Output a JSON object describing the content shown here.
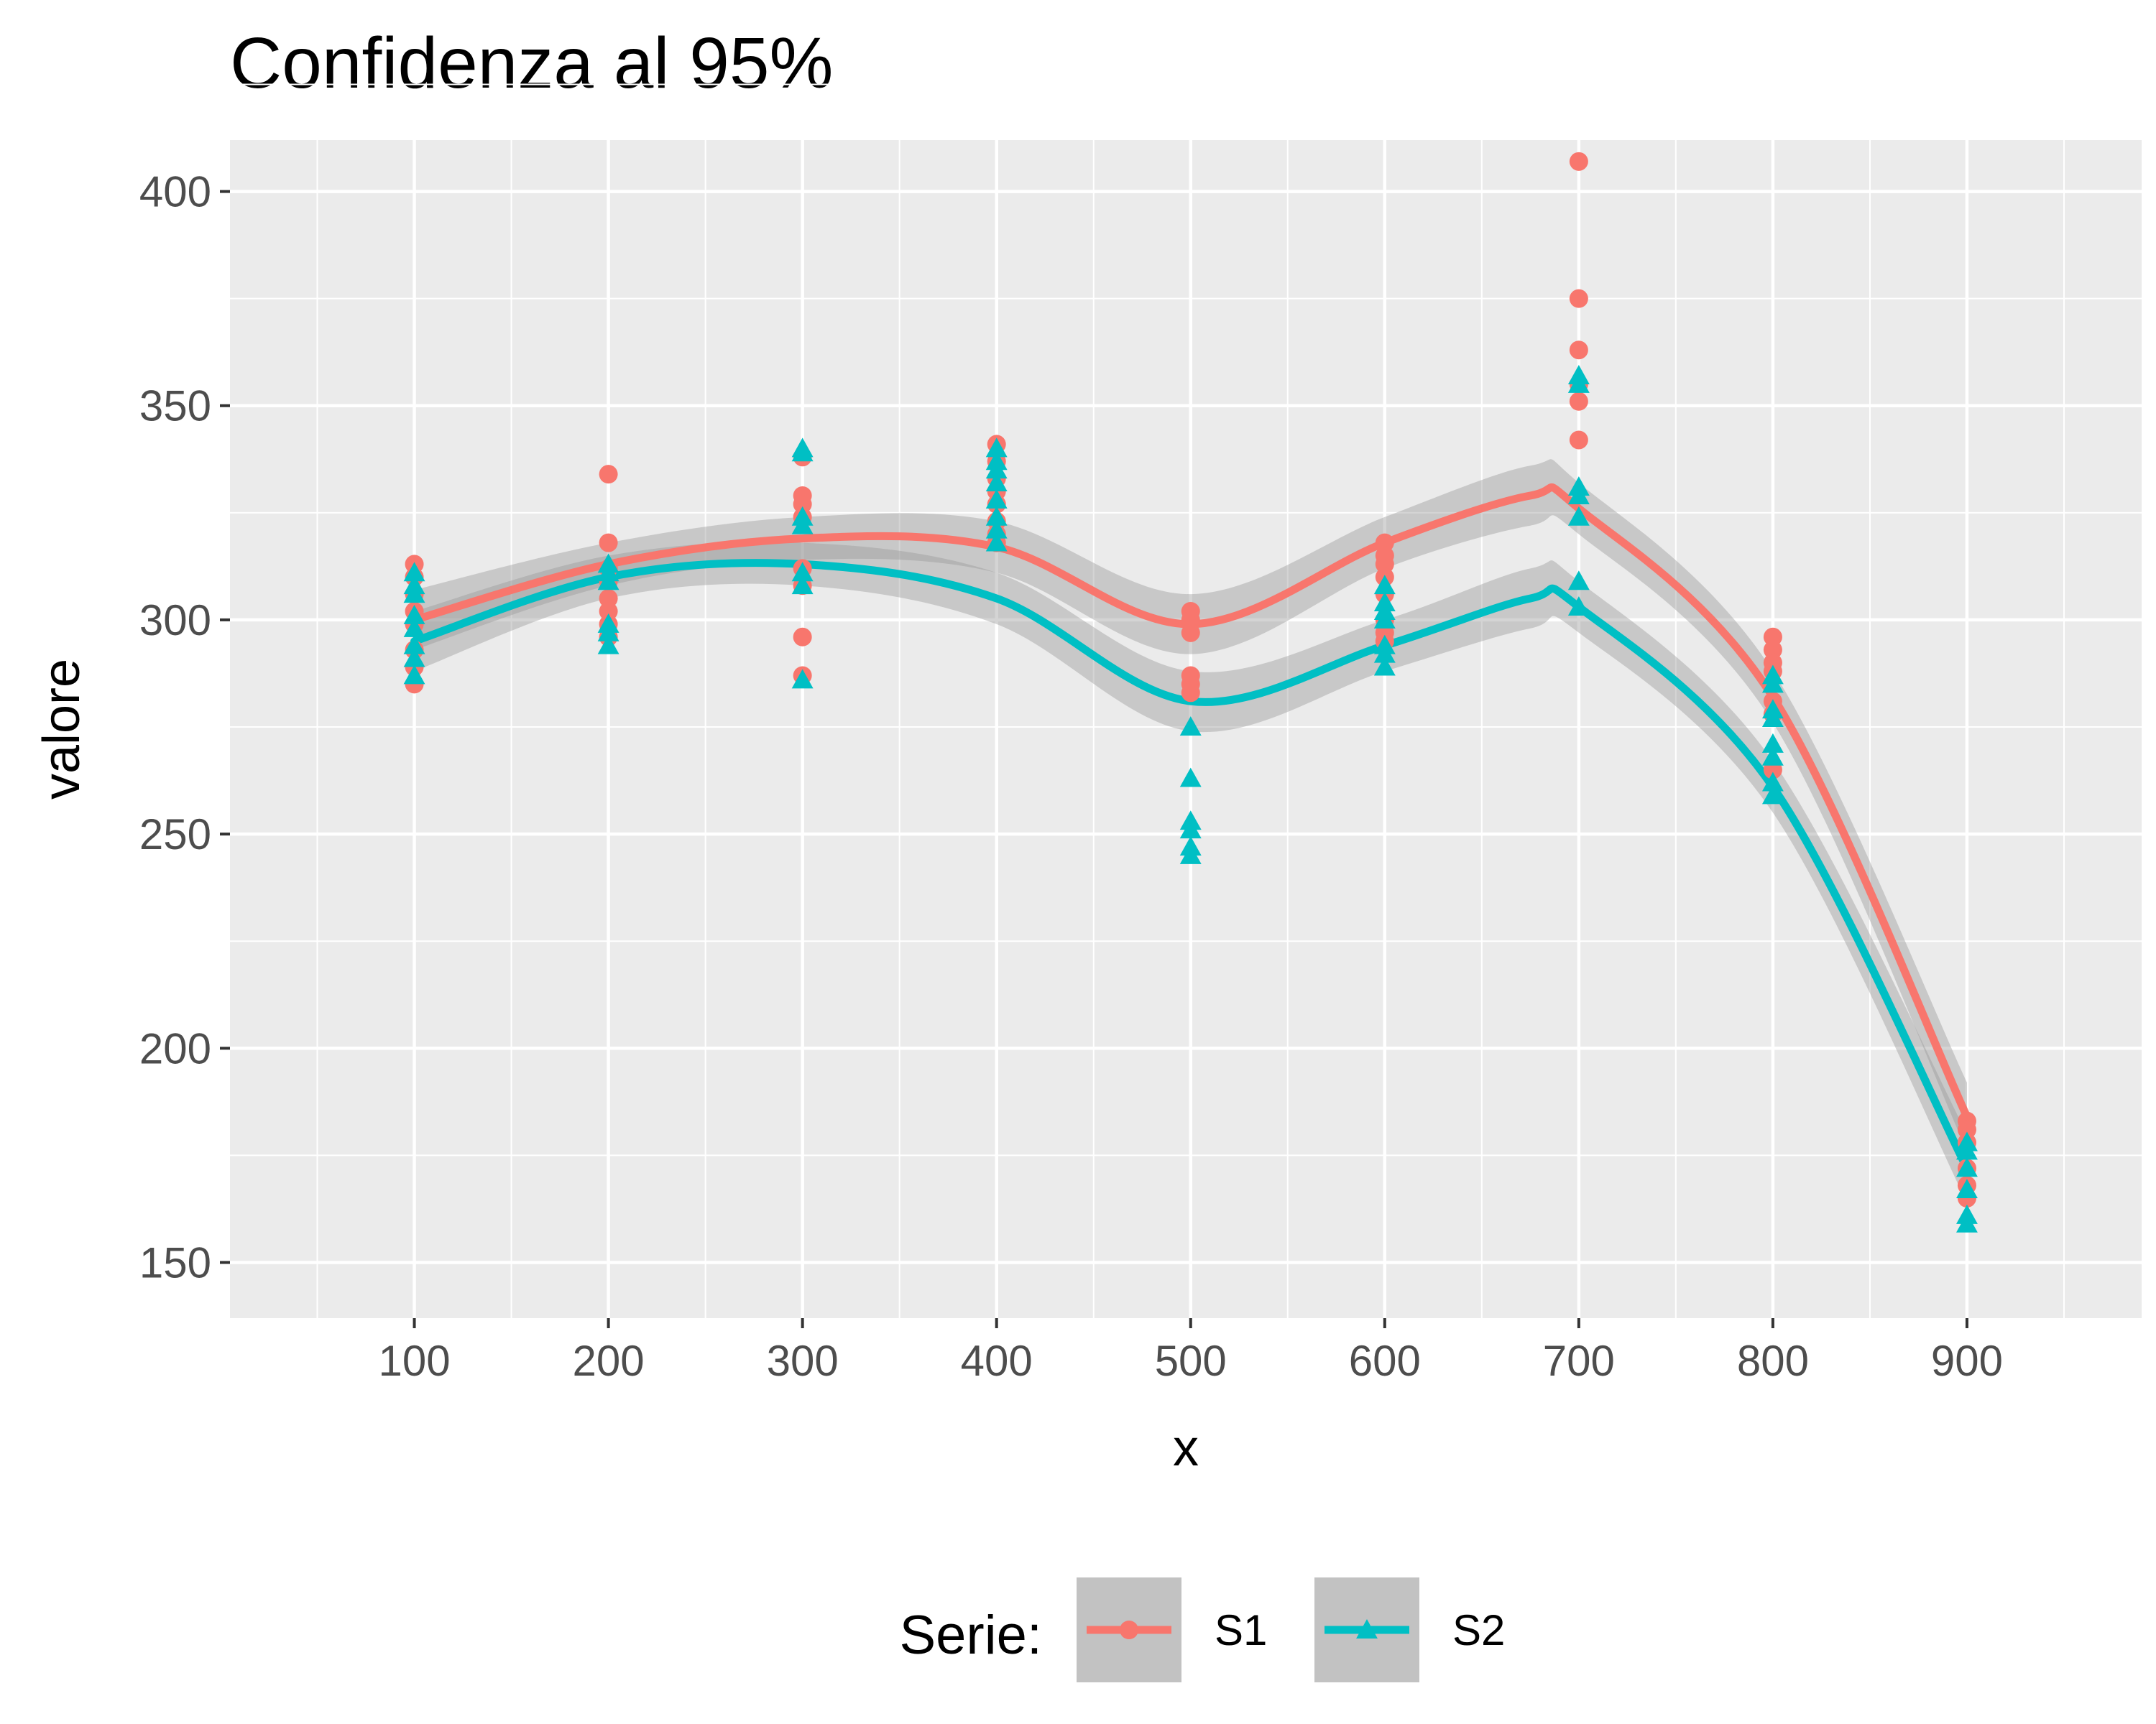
{
  "chart_data": {
    "type": "scatter",
    "title": "Confidenza al 95%",
    "xlabel": "x",
    "ylabel": "valore",
    "xlim": [
      5,
      990
    ],
    "ylim": [
      137,
      412
    ],
    "x_ticks": [
      100,
      200,
      300,
      400,
      500,
      600,
      700,
      800,
      900
    ],
    "y_ticks": [
      150,
      200,
      250,
      300,
      350,
      400
    ],
    "grid": true,
    "legend_position": "bottom",
    "legend_title": "Serie:",
    "colors": {
      "S1": "#F8766D",
      "S2": "#00BFC4",
      "ribbon": "#999999",
      "panel": "#EBEBEB"
    },
    "series": [
      {
        "name": "S1",
        "marker": "circle",
        "points": [
          [
            100,
            313
          ],
          [
            100,
            310
          ],
          [
            100,
            306
          ],
          [
            100,
            302
          ],
          [
            100,
            299
          ],
          [
            100,
            293
          ],
          [
            100,
            289
          ],
          [
            100,
            285
          ],
          [
            200,
            334
          ],
          [
            200,
            318
          ],
          [
            200,
            312
          ],
          [
            200,
            309
          ],
          [
            200,
            305
          ],
          [
            200,
            302
          ],
          [
            200,
            299
          ],
          [
            200,
            296
          ],
          [
            300,
            338
          ],
          [
            300,
            329
          ],
          [
            300,
            327
          ],
          [
            300,
            324
          ],
          [
            300,
            312
          ],
          [
            300,
            308
          ],
          [
            300,
            296
          ],
          [
            300,
            287
          ],
          [
            400,
            341
          ],
          [
            400,
            337
          ],
          [
            400,
            333
          ],
          [
            400,
            330
          ],
          [
            400,
            327
          ],
          [
            400,
            323
          ],
          [
            400,
            320
          ],
          [
            400,
            318
          ],
          [
            500,
            302
          ],
          [
            500,
            300
          ],
          [
            500,
            297
          ],
          [
            500,
            287
          ],
          [
            500,
            285
          ],
          [
            500,
            283
          ],
          [
            600,
            318
          ],
          [
            600,
            315
          ],
          [
            600,
            313
          ],
          [
            600,
            310
          ],
          [
            600,
            306
          ],
          [
            600,
            300
          ],
          [
            600,
            297
          ],
          [
            600,
            295
          ],
          [
            700,
            407
          ],
          [
            700,
            375
          ],
          [
            700,
            363
          ],
          [
            700,
            355
          ],
          [
            700,
            351
          ],
          [
            700,
            342
          ],
          [
            800,
            296
          ],
          [
            800,
            293
          ],
          [
            800,
            290
          ],
          [
            800,
            288
          ],
          [
            800,
            281
          ],
          [
            800,
            278
          ],
          [
            800,
            265
          ],
          [
            900,
            183
          ],
          [
            900,
            181
          ],
          [
            900,
            178
          ],
          [
            900,
            172
          ],
          [
            900,
            168
          ],
          [
            900,
            165
          ]
        ],
        "fit": [
          [
            100,
            300
          ],
          [
            200,
            313
          ],
          [
            300,
            319
          ],
          [
            400,
            317
          ],
          [
            500,
            299
          ],
          [
            600,
            318
          ],
          [
            675,
            329
          ],
          [
            700,
            326
          ],
          [
            800,
            282
          ],
          [
            900,
            184
          ]
        ],
        "ci_halfwidth": [
          7,
          5,
          5,
          6,
          7,
          6,
          7,
          6,
          6,
          8
        ]
      },
      {
        "name": "S2",
        "marker": "triangle",
        "points": [
          [
            100,
            311
          ],
          [
            100,
            308
          ],
          [
            100,
            306
          ],
          [
            100,
            301
          ],
          [
            100,
            298
          ],
          [
            100,
            294
          ],
          [
            100,
            291
          ],
          [
            100,
            287
          ],
          [
            200,
            313
          ],
          [
            200,
            311
          ],
          [
            200,
            309
          ],
          [
            200,
            299
          ],
          [
            200,
            297
          ],
          [
            200,
            294
          ],
          [
            300,
            340
          ],
          [
            300,
            339
          ],
          [
            300,
            324
          ],
          [
            300,
            322
          ],
          [
            300,
            311
          ],
          [
            300,
            308
          ],
          [
            300,
            286
          ],
          [
            400,
            340
          ],
          [
            400,
            337
          ],
          [
            400,
            335
          ],
          [
            400,
            332
          ],
          [
            400,
            328
          ],
          [
            400,
            324
          ],
          [
            400,
            321
          ],
          [
            400,
            318
          ],
          [
            500,
            275
          ],
          [
            500,
            263
          ],
          [
            500,
            253
          ],
          [
            500,
            251
          ],
          [
            500,
            247
          ],
          [
            500,
            245
          ],
          [
            600,
            308
          ],
          [
            600,
            304
          ],
          [
            600,
            302
          ],
          [
            600,
            300
          ],
          [
            600,
            294
          ],
          [
            600,
            292
          ],
          [
            600,
            289
          ],
          [
            700,
            357
          ],
          [
            700,
            355
          ],
          [
            700,
            331
          ],
          [
            700,
            329
          ],
          [
            700,
            324
          ],
          [
            700,
            309
          ],
          [
            700,
            303
          ],
          [
            800,
            287
          ],
          [
            800,
            285
          ],
          [
            800,
            279
          ],
          [
            800,
            277
          ],
          [
            800,
            271
          ],
          [
            800,
            268
          ],
          [
            800,
            262
          ],
          [
            800,
            259
          ],
          [
            900,
            178
          ],
          [
            900,
            176
          ],
          [
            900,
            172
          ],
          [
            900,
            167
          ],
          [
            900,
            161
          ],
          [
            900,
            159
          ]
        ],
        "fit": [
          [
            100,
            295
          ],
          [
            200,
            310
          ],
          [
            300,
            313
          ],
          [
            400,
            305
          ],
          [
            500,
            281
          ],
          [
            600,
            294
          ],
          [
            675,
            305
          ],
          [
            700,
            303
          ],
          [
            800,
            261
          ],
          [
            900,
            172
          ]
        ],
        "ci_halfwidth": [
          7,
          5,
          5,
          6,
          7,
          6,
          7,
          6,
          6,
          8
        ]
      }
    ]
  }
}
